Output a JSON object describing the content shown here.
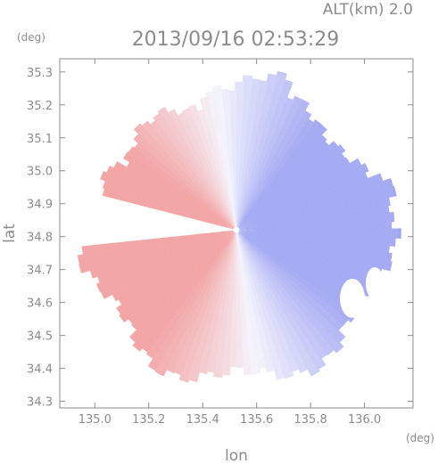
{
  "chart_data": {
    "type": "heatmap",
    "title": "2013/09/16 02:53:29",
    "subtitle": "ALT(km) 2.0",
    "xlabel": "lon",
    "ylabel": "lat",
    "x_unit": "(deg)",
    "y_unit": "(deg)",
    "xlim": [
      134.87,
      136.18
    ],
    "ylim": [
      34.28,
      35.34
    ],
    "x_ticks": [
      135.0,
      135.2,
      135.4,
      135.6,
      135.8,
      136.0
    ],
    "x_tick_labels": [
      "135.0",
      "135.2",
      "135.4",
      "135.6",
      "135.8",
      "136.0"
    ],
    "y_ticks": [
      34.3,
      34.4,
      34.5,
      34.6,
      34.7,
      34.8,
      34.9,
      35.0,
      35.1,
      35.2,
      35.3
    ],
    "y_tick_labels": [
      "34.3",
      "34.4",
      "34.5",
      "34.6",
      "34.7",
      "34.8",
      "34.9",
      "35.0",
      "35.1",
      "35.2",
      "35.3"
    ],
    "grid": false,
    "radar_center": {
      "lon": 135.525,
      "lat": 34.82
    },
    "radar_range_deg": 0.6,
    "colors": {
      "receding": "#f2a0a0",
      "approaching": "#a0a6f2",
      "zero": "#f4f4fc",
      "axis": "#8c8c8c"
    },
    "field_description_values": {
      "west_half": "positive (red, receding)",
      "east_half": "negative (blue, approaching)"
    }
  }
}
